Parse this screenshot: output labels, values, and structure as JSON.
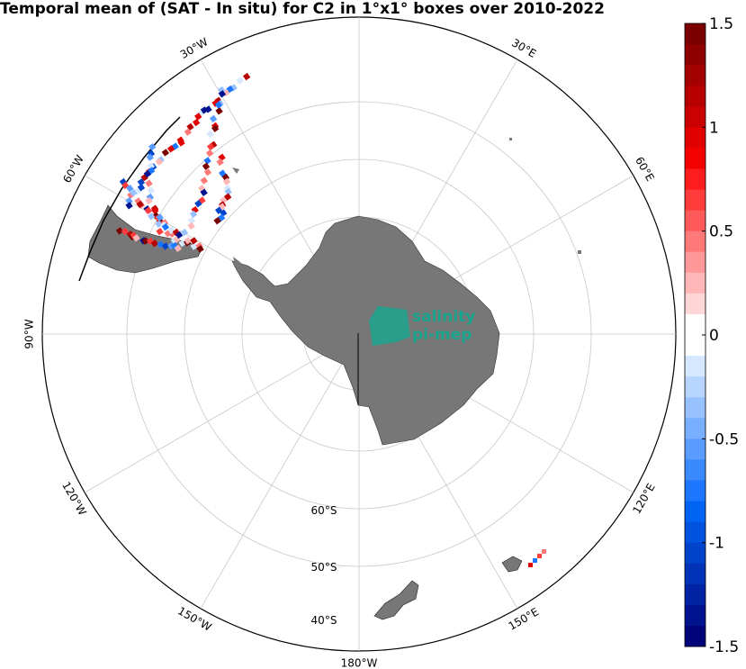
{
  "title": "Temporal mean of (SAT - In situ) for C2 in 1°x1° boxes over 2010-2022",
  "logo": {
    "line1": "salinity",
    "line2": "pi-mep"
  },
  "longitude_labels": [
    {
      "text": "30°E",
      "lon": 30
    },
    {
      "text": "60°E",
      "lon": 60
    },
    {
      "text": "120°E",
      "lon": 120
    },
    {
      "text": "150°E",
      "lon": 150
    },
    {
      "text": "180°W",
      "lon": 180
    },
    {
      "text": "150°W",
      "lon": -150
    },
    {
      "text": "120°W",
      "lon": -120
    },
    {
      "text": "90°W",
      "lon": -90
    },
    {
      "text": "60°W",
      "lon": -60
    },
    {
      "text": "30°W",
      "lon": -30
    }
  ],
  "latitude_labels": [
    "60°S",
    "50°S",
    "40°S"
  ],
  "colorbar": {
    "ticks": [
      "1.5",
      "1",
      "0.5",
      "0",
      "-0.5",
      "-1",
      "-1.5"
    ],
    "min": -1.5,
    "max": 1.5,
    "colors_top_to_bottom": [
      "#7a0000",
      "#8e0000",
      "#a30000",
      "#b70000",
      "#cb0000",
      "#e00000",
      "#f40000",
      "#ff1c1c",
      "#ff3b3b",
      "#ff5a5a",
      "#ff7979",
      "#ff9898",
      "#ffb7b7",
      "#ffd6d6",
      "#ffffff",
      "#ffffff",
      "#d6e8ff",
      "#b7d5ff",
      "#98c2ff",
      "#79afff",
      "#5a9cff",
      "#3b89ff",
      "#1c76ff",
      "#0063f4",
      "#0053e0",
      "#0043cb",
      "#0033b7",
      "#0023a3",
      "#00138e",
      "#00037a"
    ]
  },
  "colors": {
    "land": "#777777",
    "grid": "#c8c8c8",
    "logo": "#1aa58e"
  }
}
